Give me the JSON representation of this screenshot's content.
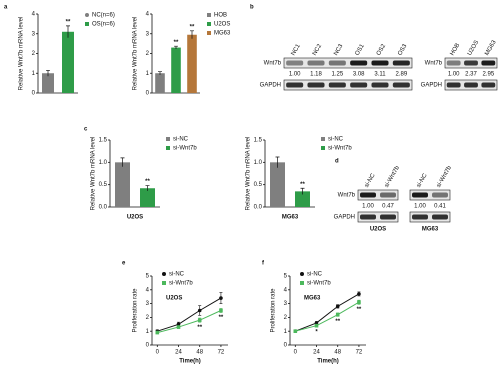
{
  "panel_labels": [
    "a",
    "b",
    "c",
    "d",
    "e",
    "f"
  ],
  "chart_data": [
    {
      "type": "bar",
      "ylabel": "Relative Wnt7b mRNA level",
      "ylim": [
        0,
        4
      ],
      "yticks": [
        0,
        1,
        2,
        3,
        4
      ],
      "series": [
        {
          "name": "NC(n=6)",
          "color": "#7f7f7f",
          "marker": "circle",
          "values": [
            1.0
          ],
          "errors": [
            0.15
          ],
          "significance": [
            null
          ]
        },
        {
          "name": "OS(n=6)",
          "color": "#2e9c48",
          "marker": "square",
          "values": [
            3.1
          ],
          "errors": [
            0.3
          ],
          "significance": [
            "**"
          ]
        }
      ]
    },
    {
      "type": "bar",
      "ylabel": "Relative Wnt7b mRNA level",
      "ylim": [
        0,
        4
      ],
      "yticks": [
        0,
        1,
        2,
        3,
        4
      ],
      "series": [
        {
          "name": "HOB",
          "color": "#7f7f7f",
          "marker": "square",
          "values": [
            1.0
          ],
          "errors": [
            0.08
          ],
          "significance": [
            null
          ]
        },
        {
          "name": "U2OS",
          "color": "#2e9c48",
          "marker": "square",
          "values": [
            2.3
          ],
          "errors": [
            0.07
          ],
          "significance": [
            "**"
          ]
        },
        {
          "name": "MG63",
          "color": "#b5773a",
          "marker": "square",
          "values": [
            2.95
          ],
          "errors": [
            0.2
          ],
          "significance": [
            "**"
          ]
        }
      ]
    },
    {
      "type": "bar",
      "ylabel": "Relative Wnt7b mRNA level",
      "xlabel": "U2OS",
      "ylim": [
        0,
        1.5
      ],
      "yticks": [
        {
          "value": 0,
          "label": "0.0"
        },
        {
          "value": 0.5,
          "label": "0.5"
        },
        {
          "value": 1,
          "label": "1.0"
        },
        {
          "value": 1.5,
          "label": "1.5"
        }
      ],
      "series": [
        {
          "name": "si-NC",
          "color": "#7f7f7f",
          "marker": "square",
          "values": [
            1.0
          ],
          "errors": [
            0.1
          ],
          "significance": [
            null
          ]
        },
        {
          "name": "si-Wnt7b",
          "color": "#2e9c48",
          "marker": "square",
          "values": [
            0.42
          ],
          "errors": [
            0.06
          ],
          "significance": [
            "**"
          ]
        }
      ]
    },
    {
      "type": "bar",
      "ylabel": "Relative Wnt7b mRNA level",
      "xlabel": "MG63",
      "ylim": [
        0,
        1.5
      ],
      "yticks": [
        {
          "value": 0,
          "label": "0.0"
        },
        {
          "value": 0.5,
          "label": "0.5"
        },
        {
          "value": 1,
          "label": "1.0"
        },
        {
          "value": 1.5,
          "label": "1.5"
        }
      ],
      "series": [
        {
          "name": "si-NC",
          "color": "#7f7f7f",
          "marker": "square",
          "values": [
            1.0
          ],
          "errors": [
            0.12
          ],
          "significance": [
            null
          ]
        },
        {
          "name": "si-Wnt7b",
          "color": "#2e9c48",
          "marker": "square",
          "values": [
            0.35
          ],
          "errors": [
            0.07
          ],
          "significance": [
            "**"
          ]
        }
      ]
    },
    {
      "type": "line",
      "label": "U2OS",
      "xlabel": "Time(h)",
      "ylabel": "Proliferation rate",
      "x": [
        0,
        24,
        48,
        72
      ],
      "xlim": [
        -6,
        80
      ],
      "xticks": [
        0,
        24,
        48,
        72
      ],
      "ylim": [
        0,
        5
      ],
      "yticks": [
        0,
        1,
        2,
        3,
        4,
        5
      ],
      "series": [
        {
          "name": "si-NC",
          "color": "#111111",
          "marker": "circle",
          "values": [
            1.0,
            1.5,
            2.5,
            3.4
          ],
          "errors": [
            0.1,
            0.15,
            0.35,
            0.4
          ],
          "significance": [
            null,
            null,
            null,
            null
          ]
        },
        {
          "name": "si-Wnt7b",
          "color": "#4cb85c",
          "marker": "square",
          "values": [
            0.9,
            1.3,
            1.8,
            2.5
          ],
          "errors": [
            0.08,
            0.1,
            0.15,
            0.15
          ],
          "significance": [
            null,
            null,
            "**",
            "**"
          ]
        }
      ]
    },
    {
      "type": "line",
      "label": "MG63",
      "xlabel": "Time(h)",
      "ylabel": "Proliferation rate",
      "x": [
        0,
        24,
        48,
        72
      ],
      "xlim": [
        -6,
        80
      ],
      "xticks": [
        0,
        24,
        48,
        72
      ],
      "ylim": [
        0,
        5
      ],
      "yticks": [
        0,
        1,
        2,
        3,
        4,
        5
      ],
      "series": [
        {
          "name": "si-NC",
          "color": "#111111",
          "marker": "circle",
          "values": [
            1.0,
            1.6,
            2.8,
            3.7
          ],
          "errors": [
            0.05,
            0.1,
            0.12,
            0.15
          ],
          "significance": [
            null,
            null,
            null,
            null
          ]
        },
        {
          "name": "si-Wnt7b",
          "color": "#4cb85c",
          "marker": "square",
          "values": [
            1.0,
            1.4,
            2.2,
            3.1
          ],
          "errors": [
            0.05,
            0.1,
            0.12,
            0.15
          ],
          "significance": [
            null,
            "*",
            "**",
            "**"
          ]
        }
      ]
    }
  ],
  "blots": [
    {
      "lanes": [
        "NC1",
        "NC2",
        "NC3",
        "OS1",
        "OS2",
        "OS3"
      ],
      "rows": [
        "Wnt7b",
        "GAPDH"
      ],
      "values": [
        1.0,
        1.18,
        1.25,
        3.08,
        3.11,
        2.89
      ],
      "value_labels": [
        "1.00",
        "1.18",
        "1.25",
        "3.08",
        "3.11",
        "2.89"
      ]
    },
    {
      "lanes": [
        "HOB",
        "U2OS",
        "MG63"
      ],
      "rows": [
        "Wnt7b",
        "GAPDH"
      ],
      "values": [
        1.0,
        2.37,
        2.95
      ],
      "value_labels": [
        "1.00",
        "2.37",
        "2.95"
      ]
    },
    {
      "lanes": [
        "si-NC",
        "si-Wnt7b"
      ],
      "rows": [
        "Wnt7b",
        "GAPDH"
      ],
      "caption": "U2OS",
      "values": [
        1.0,
        0.47
      ],
      "value_labels": [
        "1.00",
        "0.47"
      ]
    },
    {
      "lanes": [
        "si-NC",
        "si-Wnt7b"
      ],
      "caption": "MG63",
      "values": [
        1.0,
        0.41
      ],
      "value_labels": [
        "1.00",
        "0.41"
      ]
    }
  ]
}
